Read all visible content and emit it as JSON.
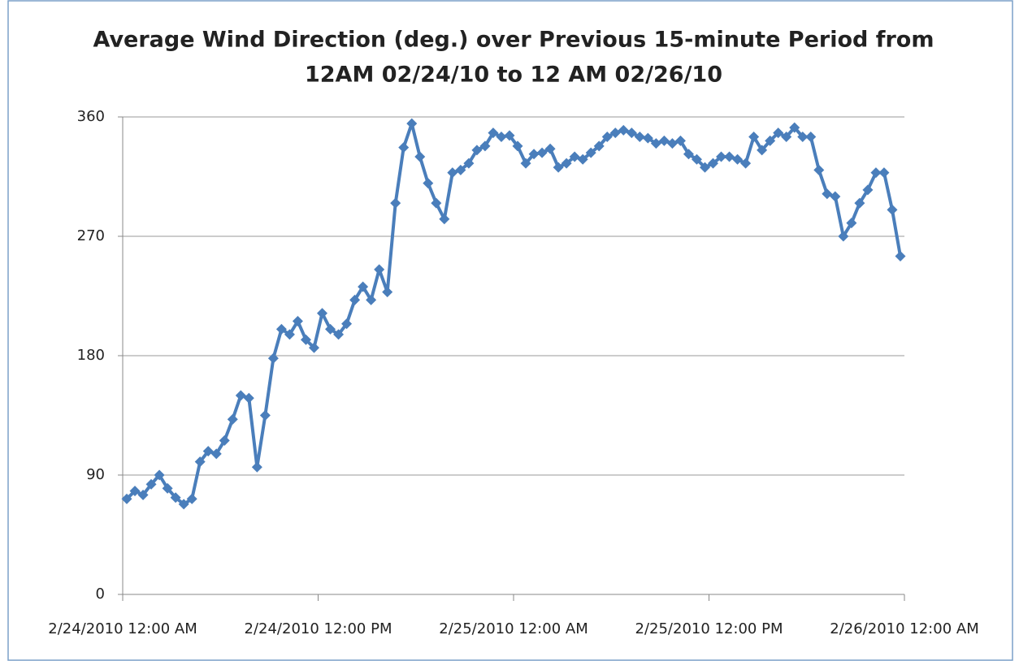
{
  "chart_data": {
    "type": "line",
    "title": [
      "Average Wind Direction (deg.) over Previous 15-minute Period from",
      "12AM 02/24/10 to 12 AM 02/26/10"
    ],
    "x": [
      "2010-02-24T00:15",
      "2010-02-24T00:45",
      "2010-02-24T01:15",
      "2010-02-24T01:45",
      "2010-02-24T02:15",
      "2010-02-24T02:45",
      "2010-02-24T03:15",
      "2010-02-24T03:45",
      "2010-02-24T04:15",
      "2010-02-24T04:45",
      "2010-02-24T05:15",
      "2010-02-24T05:45",
      "2010-02-24T06:15",
      "2010-02-24T06:45",
      "2010-02-24T07:15",
      "2010-02-24T07:45",
      "2010-02-24T08:15",
      "2010-02-24T08:45",
      "2010-02-24T09:15",
      "2010-02-24T09:45",
      "2010-02-24T10:15",
      "2010-02-24T10:45",
      "2010-02-24T11:15",
      "2010-02-24T11:45",
      "2010-02-24T12:15",
      "2010-02-24T12:45",
      "2010-02-24T13:15",
      "2010-02-24T13:45",
      "2010-02-24T14:15",
      "2010-02-24T14:45",
      "2010-02-24T15:15",
      "2010-02-24T15:45",
      "2010-02-24T16:15",
      "2010-02-24T16:45",
      "2010-02-24T17:15",
      "2010-02-24T17:45",
      "2010-02-24T18:15",
      "2010-02-24T18:45",
      "2010-02-24T19:15",
      "2010-02-24T19:45",
      "2010-02-24T20:15",
      "2010-02-24T20:45",
      "2010-02-24T21:15",
      "2010-02-24T21:45",
      "2010-02-24T22:15",
      "2010-02-24T22:45",
      "2010-02-24T23:15",
      "2010-02-24T23:45",
      "2010-02-25T00:15",
      "2010-02-25T00:45",
      "2010-02-25T01:15",
      "2010-02-25T01:45",
      "2010-02-25T02:15",
      "2010-02-25T02:45",
      "2010-02-25T03:15",
      "2010-02-25T03:45",
      "2010-02-25T04:15",
      "2010-02-25T04:45",
      "2010-02-25T05:15",
      "2010-02-25T05:45",
      "2010-02-25T06:15",
      "2010-02-25T06:45",
      "2010-02-25T07:15",
      "2010-02-25T07:45",
      "2010-02-25T08:15",
      "2010-02-25T08:45",
      "2010-02-25T09:15",
      "2010-02-25T09:45",
      "2010-02-25T10:15",
      "2010-02-25T10:45",
      "2010-02-25T11:15",
      "2010-02-25T11:45",
      "2010-02-25T12:15",
      "2010-02-25T12:45",
      "2010-02-25T13:15",
      "2010-02-25T13:45",
      "2010-02-25T14:15",
      "2010-02-25T14:45",
      "2010-02-25T15:15",
      "2010-02-25T15:45",
      "2010-02-25T16:15",
      "2010-02-25T16:45",
      "2010-02-25T17:15",
      "2010-02-25T17:45",
      "2010-02-25T18:15",
      "2010-02-25T18:45",
      "2010-02-25T19:15",
      "2010-02-25T19:45",
      "2010-02-25T20:15",
      "2010-02-25T20:45",
      "2010-02-25T21:15",
      "2010-02-25T21:45",
      "2010-02-25T22:15",
      "2010-02-25T22:45",
      "2010-02-25T23:15",
      "2010-02-25T23:45"
    ],
    "values": [
      72,
      78,
      75,
      83,
      90,
      80,
      73,
      68,
      72,
      100,
      108,
      106,
      116,
      132,
      150,
      148,
      96,
      135,
      178,
      200,
      196,
      206,
      192,
      186,
      212,
      200,
      196,
      204,
      222,
      232,
      222,
      245,
      228,
      295,
      337,
      355,
      330,
      310,
      295,
      283,
      318,
      320,
      325,
      335,
      338,
      348,
      345,
      346,
      338,
      325,
      332,
      333,
      336,
      322,
      325,
      330,
      328,
      333,
      338,
      345,
      348,
      350,
      348,
      345,
      344,
      340,
      342,
      340,
      342,
      332,
      328,
      322,
      325,
      330,
      330,
      328,
      325,
      345,
      335,
      342,
      348,
      345,
      352,
      345,
      345,
      320,
      302,
      300,
      270,
      280,
      295,
      305,
      318,
      318,
      290,
      255
    ],
    "color": "#4a7ebb",
    "xlim": [
      "2010-02-24T00:00",
      "2010-02-26T00:00"
    ],
    "xticks": [
      {
        "value": "2010-02-24T00:00",
        "label": "2/24/2010 12:00 AM"
      },
      {
        "value": "2010-02-24T12:00",
        "label": "2/24/2010 12:00 PM"
      },
      {
        "value": "2010-02-25T00:00",
        "label": "2/25/2010 12:00 AM"
      },
      {
        "value": "2010-02-25T12:00",
        "label": "2/25/2010 12:00 PM"
      },
      {
        "value": "2010-02-26T00:00",
        "label": "2/26/2010 12:00 AM"
      }
    ],
    "ylim": [
      0,
      360
    ],
    "yticks": [
      0,
      90,
      180,
      270,
      360
    ],
    "grid": true
  }
}
